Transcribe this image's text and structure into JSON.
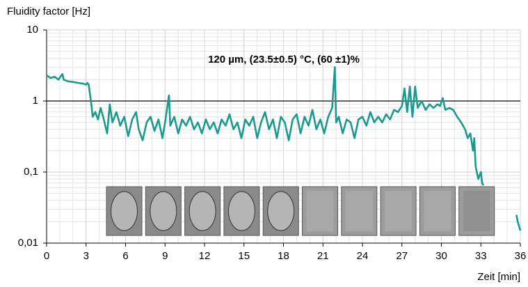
{
  "chart_data": {
    "type": "line",
    "y_axis_label": "Fluidity factor [Hz]",
    "x_axis_label": "Zeit [min]",
    "annotation": "120 µm, (23.5±0.5) °C, (60 ±1)%",
    "log_y": true,
    "grid": true,
    "hline": 1,
    "xlim": [
      0,
      36
    ],
    "xticks": [
      0,
      3,
      6,
      9,
      12,
      15,
      18,
      21,
      24,
      27,
      30,
      33,
      36
    ],
    "ylim": [
      0.01,
      10
    ],
    "yticks": [
      {
        "value": 0.01,
        "label": "0,01"
      },
      {
        "value": 0.1,
        "label": "0,1"
      },
      1,
      10
    ],
    "series": [
      {
        "color": "#1a9a8f",
        "x": [
          0,
          0.3,
          0.6,
          0.9,
          1.2,
          1.3,
          1.6,
          2.0,
          2.4,
          2.8,
          3.0,
          3.1,
          3.2,
          3.4,
          3.5,
          3.7,
          3.9,
          4.1,
          4.3,
          4.6,
          4.8,
          5.0,
          5.3,
          5.6,
          5.9,
          6.2,
          6.5,
          6.8,
          7.0,
          7.3,
          7.6,
          7.9,
          8.2,
          8.5,
          8.8,
          9.0,
          9.3,
          9.4,
          9.7,
          10.0,
          10.3,
          10.6,
          10.9,
          11.2,
          11.5,
          11.8,
          12.1,
          12.4,
          12.7,
          13.0,
          13.3,
          13.6,
          13.9,
          14.2,
          14.5,
          14.8,
          15.1,
          15.4,
          15.7,
          16.0,
          16.3,
          16.6,
          16.9,
          17.2,
          17.5,
          17.8,
          18.1,
          18.4,
          18.7,
          19.0,
          19.3,
          19.6,
          19.9,
          20.2,
          20.5,
          20.8,
          21.1,
          21.4,
          21.7,
          21.9,
          22.0,
          22.2,
          22.5,
          22.8,
          23.1,
          23.4,
          23.7,
          24.0,
          24.3,
          24.6,
          24.9,
          25.2,
          25.5,
          25.8,
          26.1,
          26.4,
          26.7,
          27.0,
          27.2,
          27.4,
          27.6,
          27.8,
          28.0,
          28.2,
          28.5,
          28.8,
          29.1,
          29.4,
          29.7,
          29.9,
          30.1,
          30.3,
          30.6,
          30.9,
          31.2,
          31.5,
          31.8,
          32.0,
          32.2,
          32.4,
          32.5,
          32.6,
          32.8,
          33.0,
          33.1,
          33.2,
          34.5,
          35.7,
          35.8,
          36.0
        ],
        "values": [
          2.3,
          2.1,
          2.2,
          2.0,
          2.4,
          2.0,
          1.9,
          1.85,
          1.8,
          1.75,
          1.7,
          1.8,
          1.7,
          0.9,
          0.6,
          0.7,
          0.55,
          0.8,
          0.6,
          0.35,
          0.9,
          0.5,
          0.7,
          0.45,
          0.6,
          0.32,
          0.55,
          0.7,
          0.4,
          0.28,
          0.5,
          0.6,
          0.38,
          0.55,
          0.3,
          0.5,
          1.2,
          0.45,
          0.6,
          0.35,
          0.55,
          0.45,
          0.6,
          0.4,
          0.5,
          0.35,
          0.55,
          0.4,
          0.5,
          0.35,
          0.55,
          0.45,
          0.65,
          0.4,
          0.5,
          0.3,
          0.55,
          0.45,
          0.6,
          0.3,
          0.5,
          0.7,
          0.4,
          0.55,
          0.3,
          0.6,
          0.5,
          0.28,
          0.55,
          0.65,
          0.35,
          0.6,
          0.45,
          0.75,
          0.4,
          0.55,
          0.35,
          0.6,
          0.8,
          3.0,
          0.5,
          0.6,
          0.35,
          0.55,
          0.5,
          0.3,
          0.55,
          0.6,
          0.45,
          0.7,
          0.5,
          0.6,
          0.5,
          0.65,
          0.55,
          0.75,
          0.7,
          0.85,
          1.5,
          0.7,
          1.6,
          0.6,
          1.6,
          0.8,
          1.0,
          0.75,
          0.9,
          0.8,
          0.9,
          0.85,
          1.1,
          0.75,
          0.8,
          0.75,
          0.6,
          0.5,
          0.4,
          0.3,
          0.35,
          0.2,
          0.3,
          0.12,
          0.08,
          0.1,
          0.07,
          0.065,
          null,
          0.025,
          0.02,
          0.015
        ]
      }
    ]
  }
}
